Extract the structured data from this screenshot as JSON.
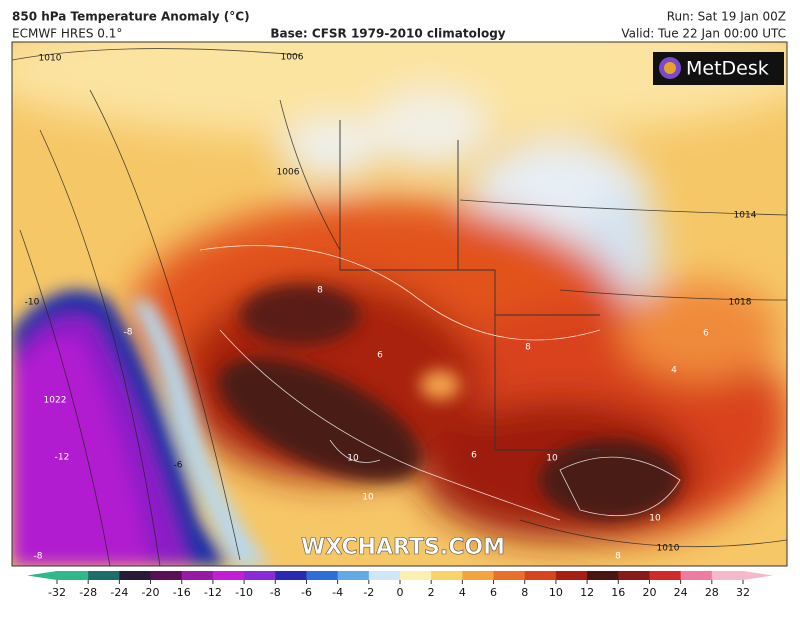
{
  "header": {
    "title": "850 hPa Temperature Anomaly (°C)",
    "model": "ECMWF HRES 0.1°",
    "base": "Base: CFSR 1979-2010 climatology",
    "run": "Run: Sat 19 Jan 00Z",
    "valid": "Valid: Tue 22 Jan 00:00 UTC"
  },
  "logo": "MetDesk",
  "watermark": "WXCHARTS.COM",
  "map_labels": [
    "1010",
    "1006",
    "1006",
    "1014",
    "1018",
    "1022",
    "1010",
    "-10",
    "-8",
    "-12",
    "-6",
    "-8",
    "8",
    "6",
    "10",
    "10",
    "10",
    "10",
    "8",
    "6",
    "6",
    "4",
    "8"
  ],
  "colorbar": {
    "ticks": [
      -32,
      -28,
      -24,
      -20,
      -16,
      -12,
      -10,
      -8,
      -6,
      -4,
      -2,
      0,
      2,
      4,
      6,
      8,
      10,
      12,
      16,
      20,
      24,
      28,
      32
    ]
  }
}
